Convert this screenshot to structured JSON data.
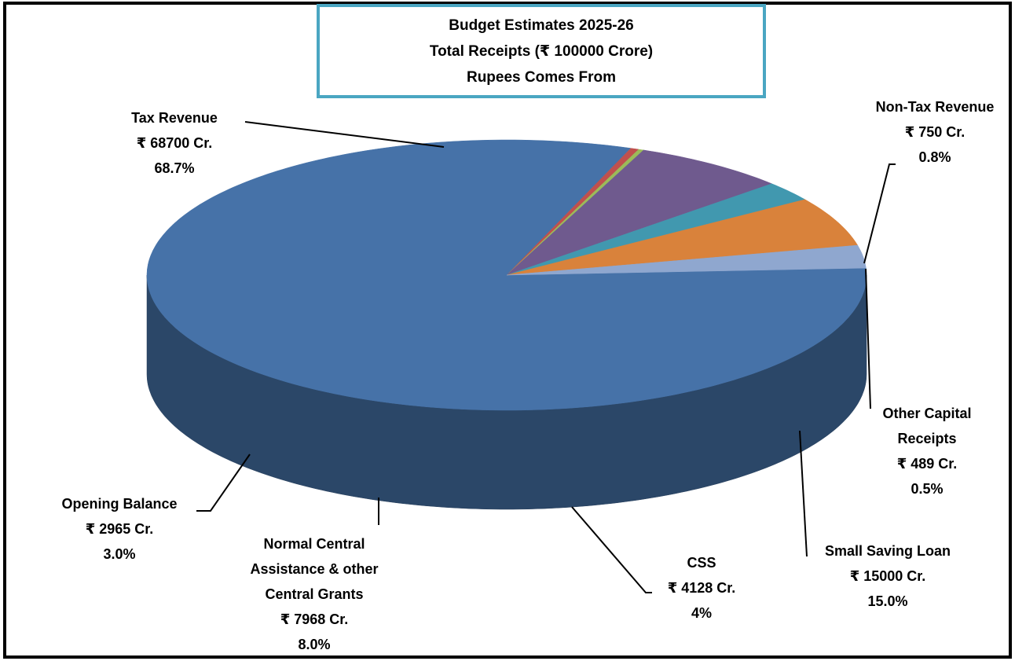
{
  "chart_data": {
    "type": "pie",
    "title_lines": [
      "Budget Estimates 2025-26",
      "Total Receipts (₹ 100000 Crore)",
      "Rupees Comes From"
    ],
    "categories": [
      "Tax Revenue",
      "Non-Tax Revenue",
      "Other Capital Receipts",
      "Small Saving Loan",
      "CSS",
      "Normal Central Assistance & other Central Grants",
      "Opening Balance"
    ],
    "values": [
      68700,
      750,
      489,
      15000,
      4128,
      7968,
      2965
    ],
    "value_labels": [
      "₹ 68700 Cr.",
      "₹ 750 Cr.",
      "₹ 489 Cr.",
      "₹ 15000 Cr.",
      "₹ 4128 Cr.",
      "₹ 7968 Cr.",
      "₹ 2965 Cr."
    ],
    "percents": [
      68.7,
      0.8,
      0.5,
      15.0,
      4,
      8.0,
      3.0
    ],
    "percent_labels": [
      "68.7%",
      "0.8%",
      "0.5%",
      "15.0%",
      "4%",
      "8.0%",
      "3.0%"
    ],
    "colors": [
      "#4672a8",
      "#c0504d",
      "#9bbb59",
      "#6f5a8e",
      "#4198af",
      "#d9823b",
      "#8fa7cf"
    ]
  }
}
